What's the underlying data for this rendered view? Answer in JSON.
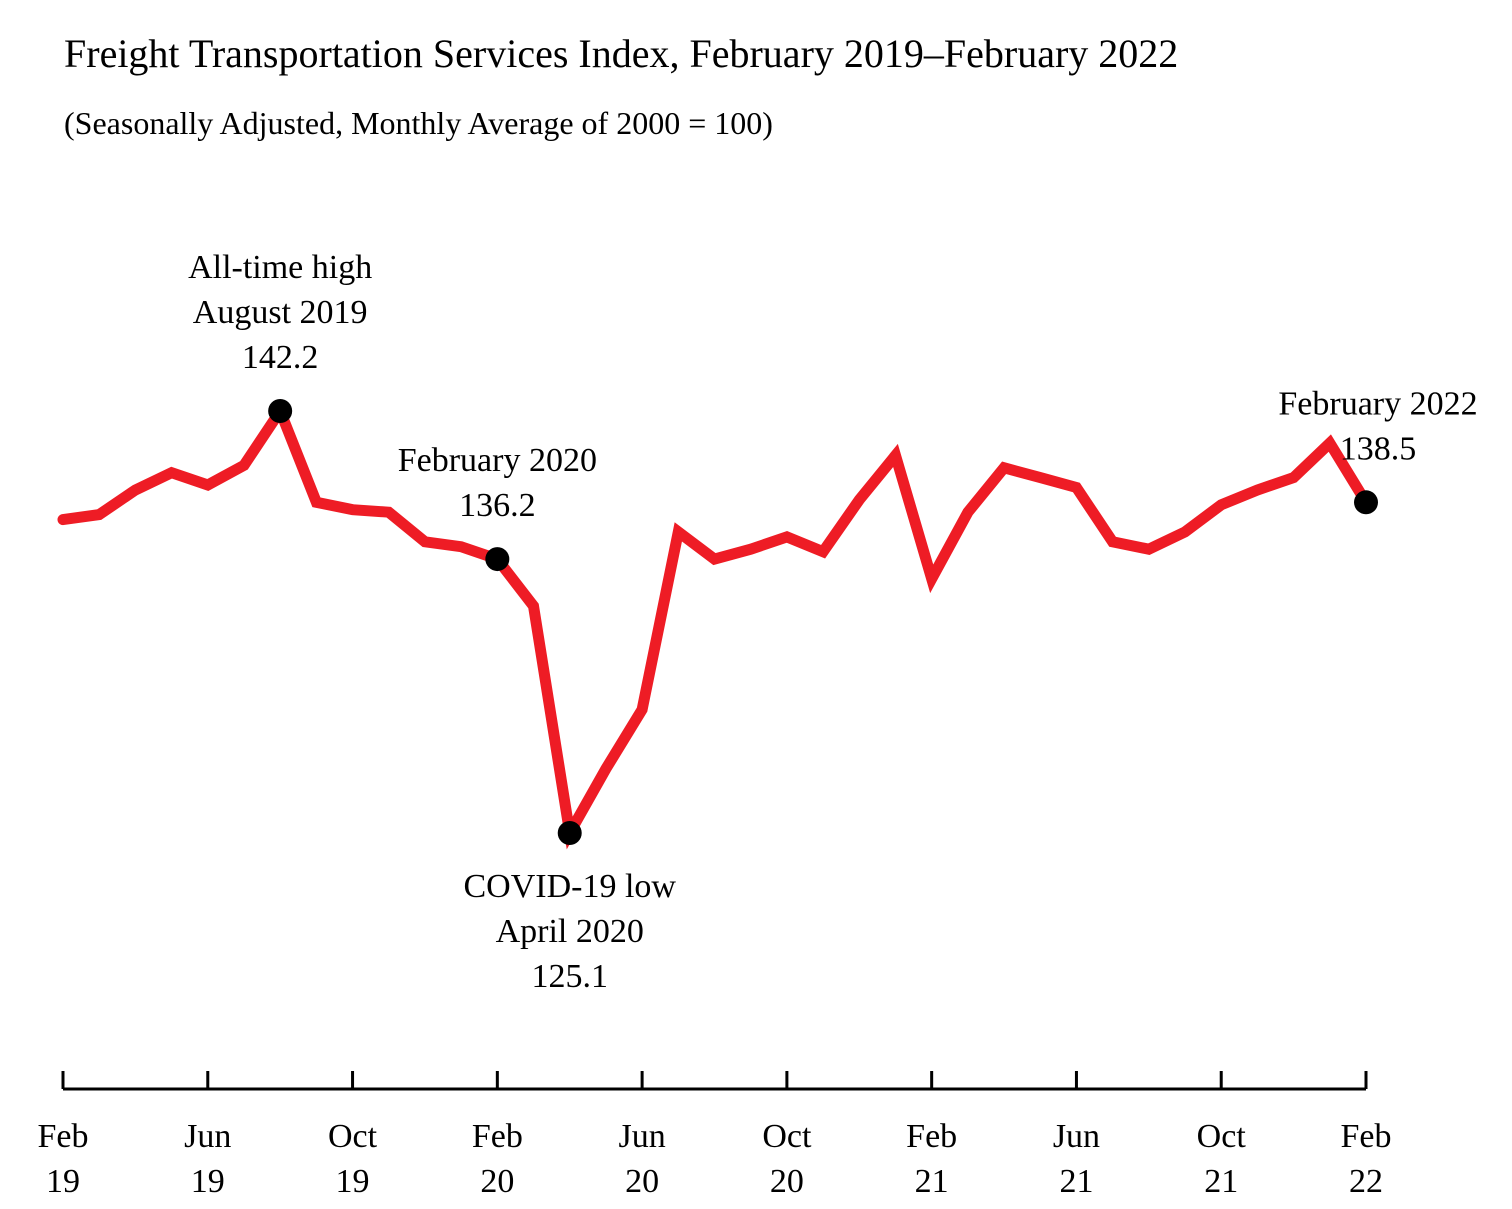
{
  "chart_data": {
    "type": "line",
    "title": "Freight Transportation Services Index, February 2019–February 2022",
    "subtitle": "(Seasonally Adjusted, Monthly Average of 2000 = 100)",
    "xlabel": "",
    "ylabel": "",
    "x": [
      "Feb 2019",
      "Mar 2019",
      "Apr 2019",
      "May 2019",
      "Jun 2019",
      "Jul 2019",
      "Aug 2019",
      "Sep 2019",
      "Oct 2019",
      "Nov 2019",
      "Dec 2019",
      "Jan 2020",
      "Feb 2020",
      "Mar 2020",
      "Apr 2020",
      "May 2020",
      "Jun 2020",
      "Jul 2020",
      "Aug 2020",
      "Sep 2020",
      "Oct 2020",
      "Nov 2020",
      "Dec 2020",
      "Jan 2021",
      "Feb 2021",
      "Mar 2021",
      "Apr 2021",
      "May 2021",
      "Jun 2021",
      "Jul 2021",
      "Aug 2021",
      "Sep 2021",
      "Oct 2021",
      "Nov 2021",
      "Dec 2021",
      "Jan 2022",
      "Feb 2022"
    ],
    "series": [
      {
        "color": "#ee1c25",
        "values": [
          137.8,
          138.0,
          139.0,
          139.7,
          139.2,
          140.0,
          142.2,
          138.5,
          138.2,
          138.1,
          136.9,
          136.7,
          136.2,
          134.3,
          125.1,
          127.7,
          130.1,
          137.3,
          136.2,
          136.6,
          137.1,
          136.5,
          138.6,
          140.4,
          135.4,
          138.1,
          139.9,
          139.5,
          139.1,
          136.9,
          136.6,
          137.3,
          138.4,
          139.0,
          139.5,
          140.9,
          138.5
        ]
      }
    ],
    "x_ticks": [
      {
        "index": 0,
        "month": "Feb",
        "year": "19"
      },
      {
        "index": 4,
        "month": "Jun",
        "year": "19"
      },
      {
        "index": 8,
        "month": "Oct",
        "year": "19"
      },
      {
        "index": 12,
        "month": "Feb",
        "year": "20"
      },
      {
        "index": 16,
        "month": "Jun",
        "year": "20"
      },
      {
        "index": 20,
        "month": "Oct",
        "year": "20"
      },
      {
        "index": 24,
        "month": "Feb",
        "year": "21"
      },
      {
        "index": 28,
        "month": "Jun",
        "year": "21"
      },
      {
        "index": 32,
        "month": "Oct",
        "year": "21"
      },
      {
        "index": 36,
        "month": "Feb",
        "year": "22"
      }
    ],
    "annotations": [
      {
        "index": 6,
        "lines": [
          "All-time high",
          "August 2019",
          "142.2"
        ],
        "placement": "above"
      },
      {
        "index": 12,
        "lines": [
          "February 2020",
          "136.2"
        ],
        "placement": "above"
      },
      {
        "index": 14,
        "lines": [
          "COVID-19 low",
          "April 2020",
          "125.1"
        ],
        "placement": "below"
      },
      {
        "index": 36,
        "lines": [
          "February 2022",
          "138.5"
        ],
        "placement": "above"
      }
    ],
    "ylim": [
      125.1,
      142.2
    ],
    "y_axis_visible": false,
    "grid": false,
    "legend": "none"
  }
}
